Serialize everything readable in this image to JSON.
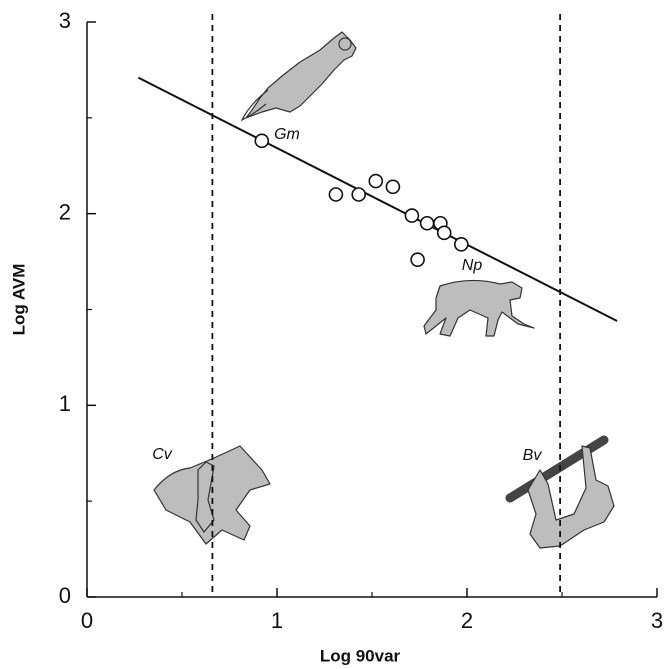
{
  "chart_data": {
    "type": "scatter",
    "xlabel": "Log 90var",
    "ylabel": "Log AVM",
    "x": [
      0.92,
      1.31,
      1.43,
      1.52,
      1.61,
      1.71,
      1.79,
      1.86,
      1.88,
      1.97,
      1.74
    ],
    "values": [
      2.38,
      2.1,
      2.1,
      2.17,
      2.14,
      1.99,
      1.95,
      1.95,
      1.9,
      1.84,
      1.76
    ],
    "fit_line": {
      "x": [
        0.27,
        2.79
      ],
      "y": [
        2.71,
        1.44
      ]
    },
    "vlines": [
      0.66,
      2.49
    ],
    "annotations": [
      "Gm",
      "Np",
      "Cv",
      "Bv"
    ],
    "xlim": [
      0,
      3
    ],
    "ylim": [
      0,
      3
    ],
    "xticks": [
      0,
      1,
      2,
      3
    ],
    "yticks": [
      0,
      1,
      2,
      3
    ],
    "xminorticks": [
      0.5,
      1.5,
      2.5
    ],
    "yminorticks": [
      0.5,
      1.5,
      2.5
    ],
    "color": "#111111"
  }
}
